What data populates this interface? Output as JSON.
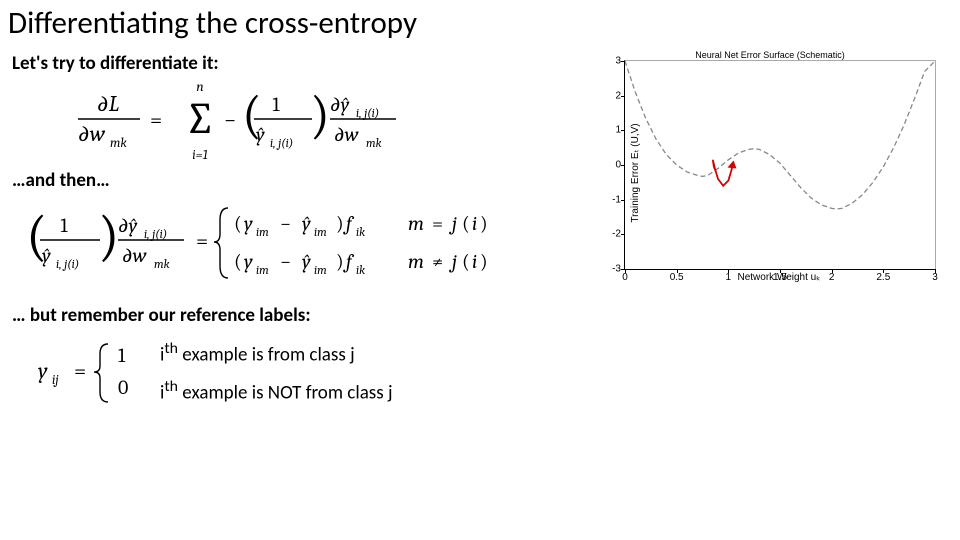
{
  "title": "Differentiating the cross-entropy",
  "lines": {
    "l1": "Let's try to differentiate it:",
    "l2": "…and then…",
    "l3": "… but remember our reference labels:"
  },
  "eq3_lines": {
    "a": "i",
    "b": " example is from class j",
    "c": "i",
    "d": " example is NOT from class j"
  },
  "chart": {
    "type": "line",
    "title": "Neural Net Error Surface (Schematic)",
    "xlabel": "Network Weight uₖ",
    "ylabel": "Training Error Eₜ (U,V)",
    "xlim": [
      0,
      3
    ],
    "ylim": [
      -3,
      3
    ],
    "xticks": [
      0,
      0.5,
      1,
      1.5,
      2,
      2.5,
      3
    ],
    "yticks": [
      -3,
      -2,
      -1,
      0,
      1,
      2,
      3
    ],
    "curve_color": "#888888",
    "curve_dash": "5,3",
    "curve_points": [
      [
        0.0,
        3.0
      ],
      [
        0.1,
        2.1
      ],
      [
        0.2,
        1.35
      ],
      [
        0.3,
        0.75
      ],
      [
        0.4,
        0.3
      ],
      [
        0.5,
        0.0
      ],
      [
        0.6,
        -0.2
      ],
      [
        0.7,
        -0.3
      ],
      [
        0.75,
        -0.33
      ],
      [
        0.8,
        -0.3
      ],
      [
        0.9,
        -0.1
      ],
      [
        1.0,
        0.15
      ],
      [
        1.1,
        0.35
      ],
      [
        1.2,
        0.45
      ],
      [
        1.25,
        0.47
      ],
      [
        1.3,
        0.45
      ],
      [
        1.4,
        0.3
      ],
      [
        1.5,
        0.05
      ],
      [
        1.6,
        -0.3
      ],
      [
        1.7,
        -0.65
      ],
      [
        1.8,
        -0.95
      ],
      [
        1.9,
        -1.15
      ],
      [
        2.0,
        -1.25
      ],
      [
        2.05,
        -1.27
      ],
      [
        2.1,
        -1.25
      ],
      [
        2.2,
        -1.1
      ],
      [
        2.3,
        -0.85
      ],
      [
        2.4,
        -0.5
      ],
      [
        2.5,
        -0.05
      ],
      [
        2.6,
        0.5
      ],
      [
        2.7,
        1.15
      ],
      [
        2.8,
        1.9
      ],
      [
        2.9,
        2.7
      ],
      [
        3.0,
        3.0
      ]
    ],
    "arrow_color": "#d40000",
    "arrow_points": [
      [
        0.88,
        -0.2
      ],
      [
        0.86,
        -0.05
      ],
      [
        0.85,
        0.15
      ],
      [
        0.87,
        -0.1
      ],
      [
        0.9,
        -0.4
      ],
      [
        0.95,
        -0.6
      ],
      [
        1.0,
        -0.45
      ],
      [
        1.03,
        -0.15
      ],
      [
        1.05,
        0.1
      ]
    ],
    "arrow_head": [
      1.05,
      0.1
    ],
    "background_color": "#ffffff"
  }
}
